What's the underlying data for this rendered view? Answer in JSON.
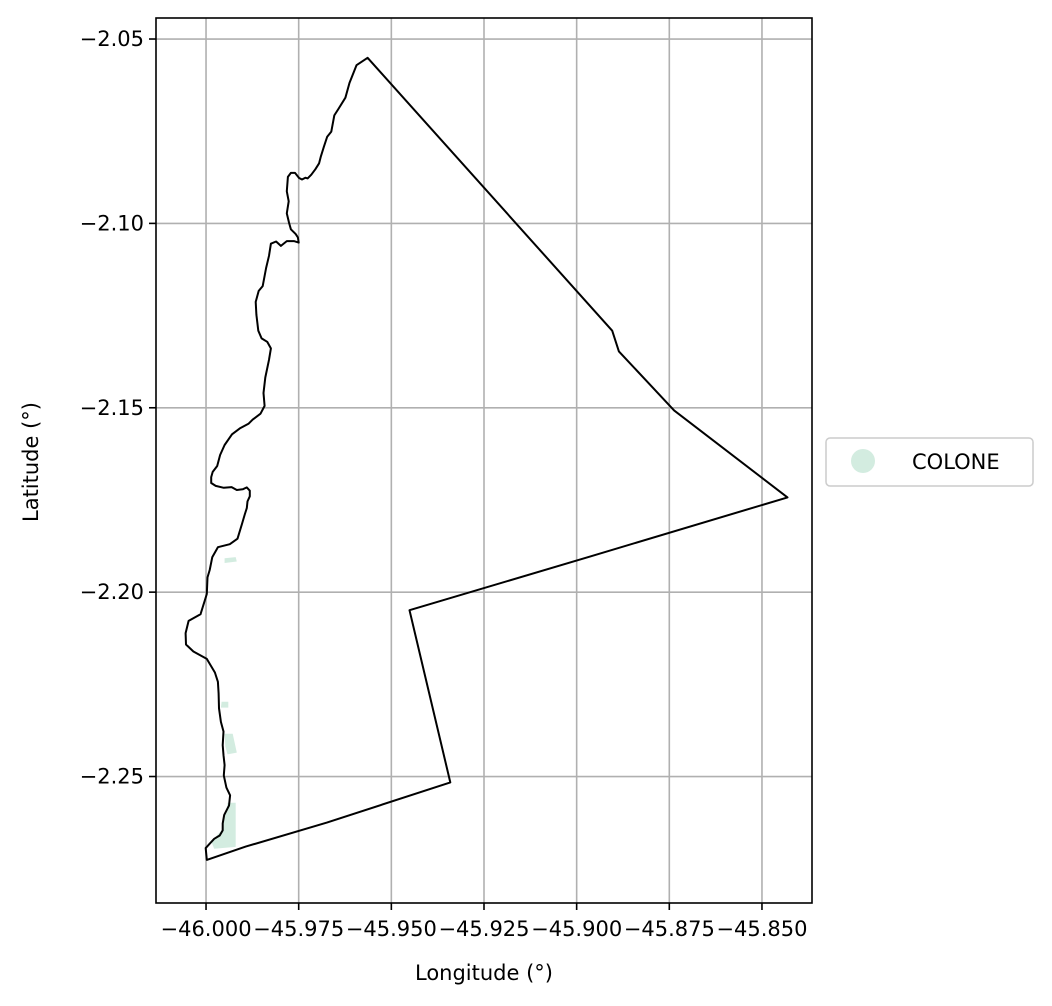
{
  "chart_data": {
    "type": "map",
    "xlabel": "Longitude (°)",
    "ylabel": "Latitude (°)",
    "xlim": [
      -46.0135,
      -45.8365
    ],
    "ylim": [
      -2.2843,
      -2.0443
    ],
    "grid": true,
    "x_ticks": [
      -46.0,
      -45.975,
      -45.95,
      -45.925,
      -45.9,
      -45.875,
      -45.85
    ],
    "x_tick_labels": [
      "−46.000",
      "−45.975",
      "−45.950",
      "−45.925",
      "−45.900",
      "−45.875",
      "−45.850"
    ],
    "y_ticks": [
      -2.25,
      -2.2,
      -2.15,
      -2.1,
      -2.05
    ],
    "y_tick_labels": [
      "−2.25",
      "−2.20",
      "−2.15",
      "−2.10",
      "−2.05"
    ],
    "legend": {
      "placement": "right",
      "entries": [
        {
          "label": "COLONE",
          "color": "#d3ece0"
        }
      ]
    },
    "boundary": {
      "stroke": "#000000",
      "points": [
        [
          -45.9564,
          -2.0551
        ],
        [
          -45.9594,
          -2.0571
        ],
        [
          -45.9613,
          -2.0619
        ],
        [
          -45.9624,
          -2.0659
        ],
        [
          -45.9643,
          -2.069
        ],
        [
          -45.9654,
          -2.0707
        ],
        [
          -45.9662,
          -2.0751
        ],
        [
          -45.9673,
          -2.0765
        ],
        [
          -45.9682,
          -2.0792
        ],
        [
          -45.969,
          -2.0818
        ],
        [
          -45.9695,
          -2.0837
        ],
        [
          -45.9705,
          -2.0853
        ],
        [
          -45.9716,
          -2.0868
        ],
        [
          -45.9726,
          -2.0878
        ],
        [
          -45.9732,
          -2.0876
        ],
        [
          -45.9741,
          -2.0881
        ],
        [
          -45.9749,
          -2.0877
        ],
        [
          -45.976,
          -2.0863
        ],
        [
          -45.9771,
          -2.0863
        ],
        [
          -45.9779,
          -2.0874
        ],
        [
          -45.9782,
          -2.0913
        ],
        [
          -45.9777,
          -2.094
        ],
        [
          -45.9782,
          -2.0973
        ],
        [
          -45.9776,
          -2.0999
        ],
        [
          -45.9771,
          -2.1016
        ],
        [
          -45.9758,
          -2.1029
        ],
        [
          -45.9752,
          -2.1038
        ],
        [
          -45.975,
          -2.1052
        ],
        [
          -45.9763,
          -2.1048
        ],
        [
          -45.9782,
          -2.1048
        ],
        [
          -45.9798,
          -2.1061
        ],
        [
          -45.9811,
          -2.1049
        ],
        [
          -45.9825,
          -2.1055
        ],
        [
          -45.983,
          -2.1088
        ],
        [
          -45.9838,
          -2.1121
        ],
        [
          -45.9847,
          -2.117
        ],
        [
          -45.9858,
          -2.1183
        ],
        [
          -45.9866,
          -2.1213
        ],
        [
          -45.9864,
          -2.1248
        ],
        [
          -45.9859,
          -2.1291
        ],
        [
          -45.985,
          -2.1312
        ],
        [
          -45.9835,
          -2.1321
        ],
        [
          -45.9825,
          -2.1339
        ],
        [
          -45.983,
          -2.137
        ],
        [
          -45.984,
          -2.1418
        ],
        [
          -45.9845,
          -2.146
        ],
        [
          -45.9842,
          -2.1495
        ],
        [
          -45.9853,
          -2.1516
        ],
        [
          -45.9874,
          -2.1532
        ],
        [
          -45.9885,
          -2.1543
        ],
        [
          -45.9909,
          -2.1556
        ],
        [
          -45.993,
          -2.1572
        ],
        [
          -45.995,
          -2.1601
        ],
        [
          -45.9962,
          -2.1628
        ],
        [
          -45.997,
          -2.1658
        ],
        [
          -45.9982,
          -2.1674
        ],
        [
          -45.9986,
          -2.1688
        ],
        [
          -45.9986,
          -2.1704
        ],
        [
          -45.9974,
          -2.1712
        ],
        [
          -45.9952,
          -2.1717
        ],
        [
          -45.9931,
          -2.1715
        ],
        [
          -45.9917,
          -2.1723
        ],
        [
          -45.9901,
          -2.1721
        ],
        [
          -45.989,
          -2.1716
        ],
        [
          -45.9882,
          -2.1725
        ],
        [
          -45.9882,
          -2.174
        ],
        [
          -45.9888,
          -2.1754
        ],
        [
          -45.989,
          -2.1772
        ],
        [
          -45.9895,
          -2.1788
        ],
        [
          -45.9903,
          -2.1815
        ],
        [
          -45.9915,
          -2.1855
        ],
        [
          -45.9936,
          -2.187
        ],
        [
          -45.9968,
          -2.1878
        ],
        [
          -45.9983,
          -2.1905
        ],
        [
          -45.999,
          -2.194
        ],
        [
          -45.9996,
          -2.196
        ],
        [
          -45.9998,
          -2.2005
        ],
        [
          -46.0015,
          -2.206
        ],
        [
          -46.0047,
          -2.2078
        ],
        [
          -46.0055,
          -2.2111
        ],
        [
          -46.0054,
          -2.2142
        ],
        [
          -46.0034,
          -2.2161
        ],
        [
          -45.9998,
          -2.2181
        ],
        [
          -45.9976,
          -2.2218
        ],
        [
          -45.9968,
          -2.2243
        ],
        [
          -45.9966,
          -2.2274
        ],
        [
          -45.9965,
          -2.2315
        ],
        [
          -45.996,
          -2.2352
        ],
        [
          -45.9953,
          -2.2378
        ],
        [
          -45.9955,
          -2.2415
        ],
        [
          -45.9953,
          -2.2442
        ],
        [
          -45.995,
          -2.2469
        ],
        [
          -45.9952,
          -2.2497
        ],
        [
          -45.9945,
          -2.253
        ],
        [
          -45.9935,
          -2.2551
        ],
        [
          -45.9938,
          -2.2579
        ],
        [
          -45.9951,
          -2.2604
        ],
        [
          -45.9955,
          -2.2627
        ],
        [
          -45.9955,
          -2.2646
        ],
        [
          -45.9963,
          -2.266
        ],
        [
          -45.9978,
          -2.2669
        ],
        [
          -45.9992,
          -2.2684
        ],
        [
          -46.0001,
          -2.2694
        ],
        [
          -45.9998,
          -2.2726
        ],
        [
          -45.9893,
          -2.269
        ],
        [
          -45.9674,
          -2.2625
        ],
        [
          -45.9341,
          -2.2516
        ],
        [
          -45.9451,
          -2.2049
        ],
        [
          -45.8963,
          -2.1903
        ],
        [
          -45.8431,
          -2.1743
        ],
        [
          -45.8737,
          -2.1507
        ],
        [
          -45.8886,
          -2.1347
        ],
        [
          -45.8904,
          -2.1291
        ],
        [
          -45.9564,
          -2.0551
        ]
      ]
    },
    "colone_areas": [
      [
        [
          -45.995,
          -2.1908
        ],
        [
          -45.992,
          -2.1905
        ],
        [
          -45.9917,
          -2.1917
        ],
        [
          -45.995,
          -2.1921
        ]
      ],
      [
        [
          -45.9958,
          -2.2297
        ],
        [
          -45.994,
          -2.2297
        ],
        [
          -45.994,
          -2.2313
        ],
        [
          -45.996,
          -2.2313
        ]
      ],
      [
        [
          -45.995,
          -2.2384
        ],
        [
          -45.9928,
          -2.2384
        ],
        [
          -45.9917,
          -2.2435
        ],
        [
          -45.9942,
          -2.244
        ],
        [
          -45.9948,
          -2.2418
        ]
      ],
      [
        [
          -45.9942,
          -2.2571
        ],
        [
          -45.992,
          -2.2571
        ],
        [
          -45.992,
          -2.2691
        ],
        [
          -45.9978,
          -2.2696
        ],
        [
          -45.9986,
          -2.2676
        ],
        [
          -45.9958,
          -2.2646
        ],
        [
          -45.9956,
          -2.262
        ],
        [
          -45.9945,
          -2.2596
        ]
      ]
    ]
  }
}
